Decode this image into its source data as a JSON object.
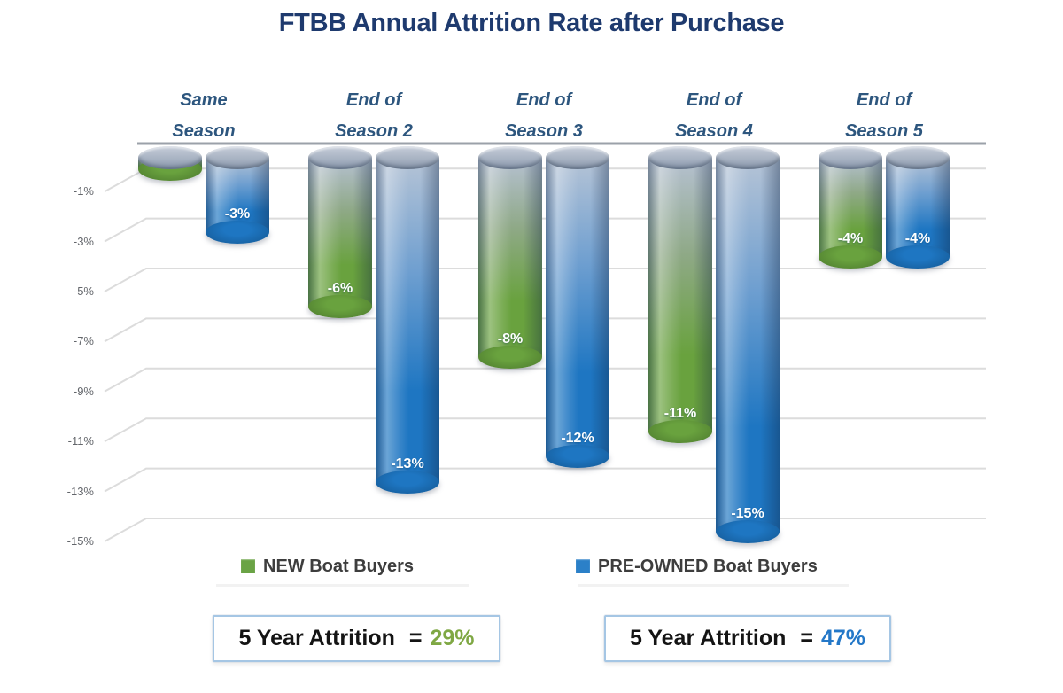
{
  "title": "FTBB Annual Attrition Rate after Purchase",
  "chart_data": {
    "type": "bar",
    "style": "3d-cylinder-hanging",
    "title": "FTBB Annual Attrition Rate after Purchase",
    "xlabel": "",
    "ylabel": "",
    "categories": [
      {
        "line1": "Same",
        "line2": "Season"
      },
      {
        "line1": "End of",
        "line2": "Season 2"
      },
      {
        "line1": "End of",
        "line2": "Season 3"
      },
      {
        "line1": "End of",
        "line2": "Season 4"
      },
      {
        "line1": "End of",
        "line2": "Season 5"
      }
    ],
    "series": [
      {
        "name": "NEW Boat Buyers",
        "values": [
          -0.5,
          -6,
          -8,
          -11,
          -4
        ],
        "labels": [
          "",
          "-6%",
          "-8%",
          "-11%",
          "-4%"
        ],
        "gradient": {
          "top": "#b6c1d2",
          "mid": "#8fa987",
          "bottom": "#69a23e",
          "dark": "#4e7c2f"
        }
      },
      {
        "name": "PRE-OWNED Boat Buyers",
        "values": [
          -3,
          -13,
          -12,
          -15,
          -4
        ],
        "labels": [
          "-3%",
          "-13%",
          "-12%",
          "-15%",
          "-4%"
        ],
        "gradient": {
          "top": "#b6c4d6",
          "mid": "#6f9fd0",
          "bottom": "#1e76c2",
          "dark": "#155a96"
        }
      }
    ],
    "yticks": [
      {
        "label": "-1%",
        "value": -1
      },
      {
        "label": "-3%",
        "value": -3
      },
      {
        "label": "-5%",
        "value": -5
      },
      {
        "label": "-7%",
        "value": -7
      },
      {
        "label": "-9%",
        "value": -9
      },
      {
        "label": "-11%",
        "value": -11
      },
      {
        "label": "-13%",
        "value": -13
      },
      {
        "label": "-15%",
        "value": -15
      }
    ],
    "ylim": [
      0,
      -15
    ],
    "grid": true,
    "legend_position": "bottom"
  },
  "legend": {
    "items": [
      {
        "label": "NEW Boat Buyers",
        "color": "#6aa345"
      },
      {
        "label": "PRE-OWNED Boat Buyers",
        "color": "#2b80c8"
      }
    ]
  },
  "summary_boxes": [
    {
      "label": "5 Year Attrition",
      "equals": "=",
      "value": "29%",
      "value_color": "#7fa844"
    },
    {
      "label": "5 Year Attrition",
      "equals": "=",
      "value": "47%",
      "value_color": "#2478c8"
    }
  ]
}
